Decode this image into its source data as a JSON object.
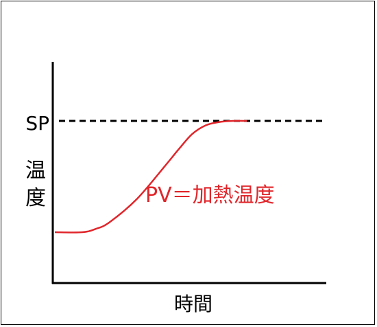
{
  "chart_data": {
    "type": "line",
    "title": "",
    "xlabel": "時間",
    "ylabel": "温度",
    "ylim": [
      0,
      1
    ],
    "grid": false,
    "reference_lines": [
      {
        "label": "SP",
        "y": 1.0,
        "style": "dashed",
        "color": "#000000"
      }
    ],
    "series": [
      {
        "name": "PV＝加熱温度",
        "color": "#e0262b",
        "x": [
          0.0,
          0.1,
          0.15,
          0.2,
          0.3,
          0.4,
          0.45,
          0.5,
          0.55,
          0.6,
          0.65,
          0.7
        ],
        "y": [
          0.0,
          0.0,
          0.03,
          0.09,
          0.3,
          0.59,
          0.74,
          0.88,
          0.96,
          0.99,
          1.0,
          1.0
        ]
      }
    ]
  }
}
